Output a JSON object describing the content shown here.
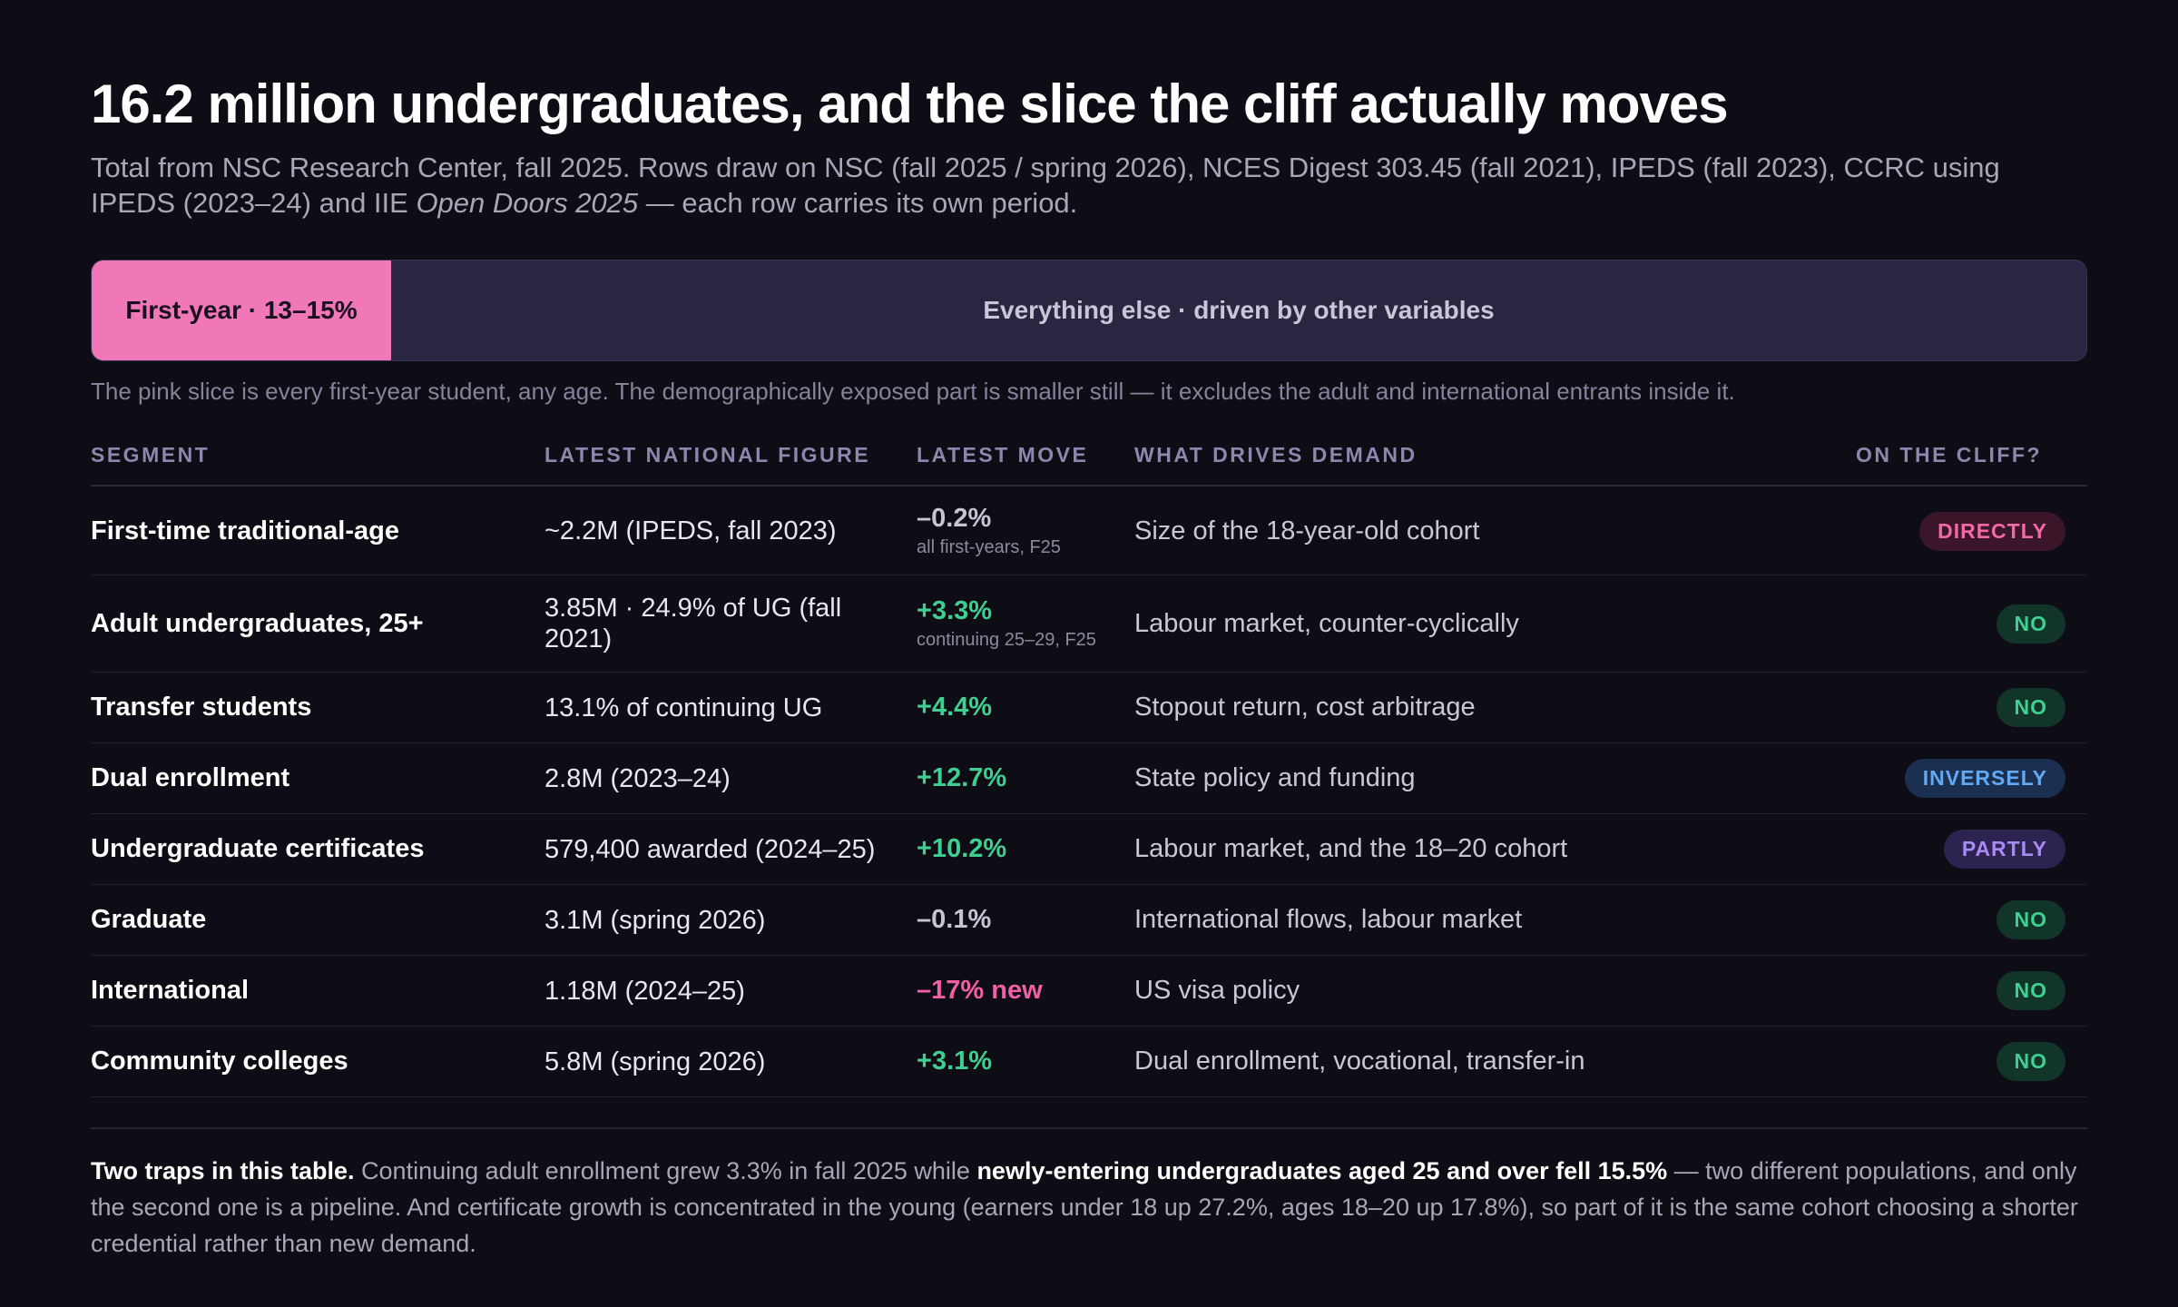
{
  "title": "16.2 million undergraduates, and the slice the cliff actually moves",
  "subtitle": {
    "part1": "Total from NSC Research Center, fall 2025. Rows draw on NSC (fall 2025 / spring 2026), NCES Digest 303.45 (fall 2021), IPEDS (fall 2023), CCRC using IPEDS (2023–24) and IIE ",
    "italic": "Open Doors 2025",
    "part2": " — each row carries its own period."
  },
  "bar": {
    "pink_label": "First-year · 13–15%",
    "rest_label": "Everything else · driven by other variables",
    "note": "The pink slice is every first-year student, any age. The demographically exposed part is smaller still — it excludes the adult and international entrants inside it.",
    "colors": {
      "pink": "#f077b8",
      "rest": "#2a2540"
    }
  },
  "table": {
    "headers": {
      "segment": "SEGMENT",
      "figure": "LATEST NATIONAL FIGURE",
      "move": "LATEST MOVE",
      "drives": "WHAT DRIVES DEMAND",
      "cliff": "ON THE CLIFF?"
    },
    "rows": [
      {
        "segment": "First-time traditional-age",
        "figure": "~2.2M (IPEDS, fall 2023)",
        "move": "–0.2%",
        "move_sub": "all first-years, F25",
        "move_tone": "neutral",
        "drives": "Size of the 18-year-old cohort",
        "cliff": "DIRECTLY",
        "cliff_tone": "directly"
      },
      {
        "segment": "Adult undergraduates, 25+",
        "figure": "3.85M · 24.9% of UG (fall 2021)",
        "move": "+3.3%",
        "move_sub": "continuing 25–29, F25",
        "move_tone": "positive",
        "drives": "Labour market, counter-cyclically",
        "cliff": "NO",
        "cliff_tone": "no"
      },
      {
        "segment": "Transfer students",
        "figure": "13.1% of continuing UG",
        "move": "+4.4%",
        "move_sub": "",
        "move_tone": "positive",
        "drives": "Stopout return, cost arbitrage",
        "cliff": "NO",
        "cliff_tone": "no"
      },
      {
        "segment": "Dual enrollment",
        "figure": "2.8M (2023–24)",
        "move": "+12.7%",
        "move_sub": "",
        "move_tone": "positive",
        "drives": "State policy and funding",
        "cliff": "INVERSELY",
        "cliff_tone": "inversely"
      },
      {
        "segment": "Undergraduate certificates",
        "figure": "579,400 awarded (2024–25)",
        "move": "+10.2%",
        "move_sub": "",
        "move_tone": "positive",
        "drives": "Labour market, and the 18–20 cohort",
        "cliff": "PARTLY",
        "cliff_tone": "partly"
      },
      {
        "segment": "Graduate",
        "figure": "3.1M (spring 2026)",
        "move": "–0.1%",
        "move_sub": "",
        "move_tone": "neutral",
        "drives": "International flows, labour market",
        "cliff": "NO",
        "cliff_tone": "no"
      },
      {
        "segment": "International",
        "figure": "1.18M (2024–25)",
        "move": "–17% new",
        "move_sub": "",
        "move_tone": "hot",
        "drives": "US visa policy",
        "cliff": "NO",
        "cliff_tone": "no"
      },
      {
        "segment": "Community colleges",
        "figure": "5.8M (spring 2026)",
        "move": "+3.1%",
        "move_sub": "",
        "move_tone": "positive",
        "drives": "Dual enrollment, vocational, transfer-in",
        "cliff": "NO",
        "cliff_tone": "no"
      }
    ]
  },
  "footer": {
    "lead": "Two traps in this table.",
    "text1": " Continuing adult enrollment grew 3.3% in fall 2025 while ",
    "bold": "newly-entering undergraduates aged 25 and over fell 15.5%",
    "text2": " — two different populations, and only the second one is a pipeline. And certificate growth is concentrated in the young (earners under 18 up 27.2%, ages 18–20 up 17.8%), so part of it is the same cohort choosing a shorter credential rather than new demand."
  }
}
